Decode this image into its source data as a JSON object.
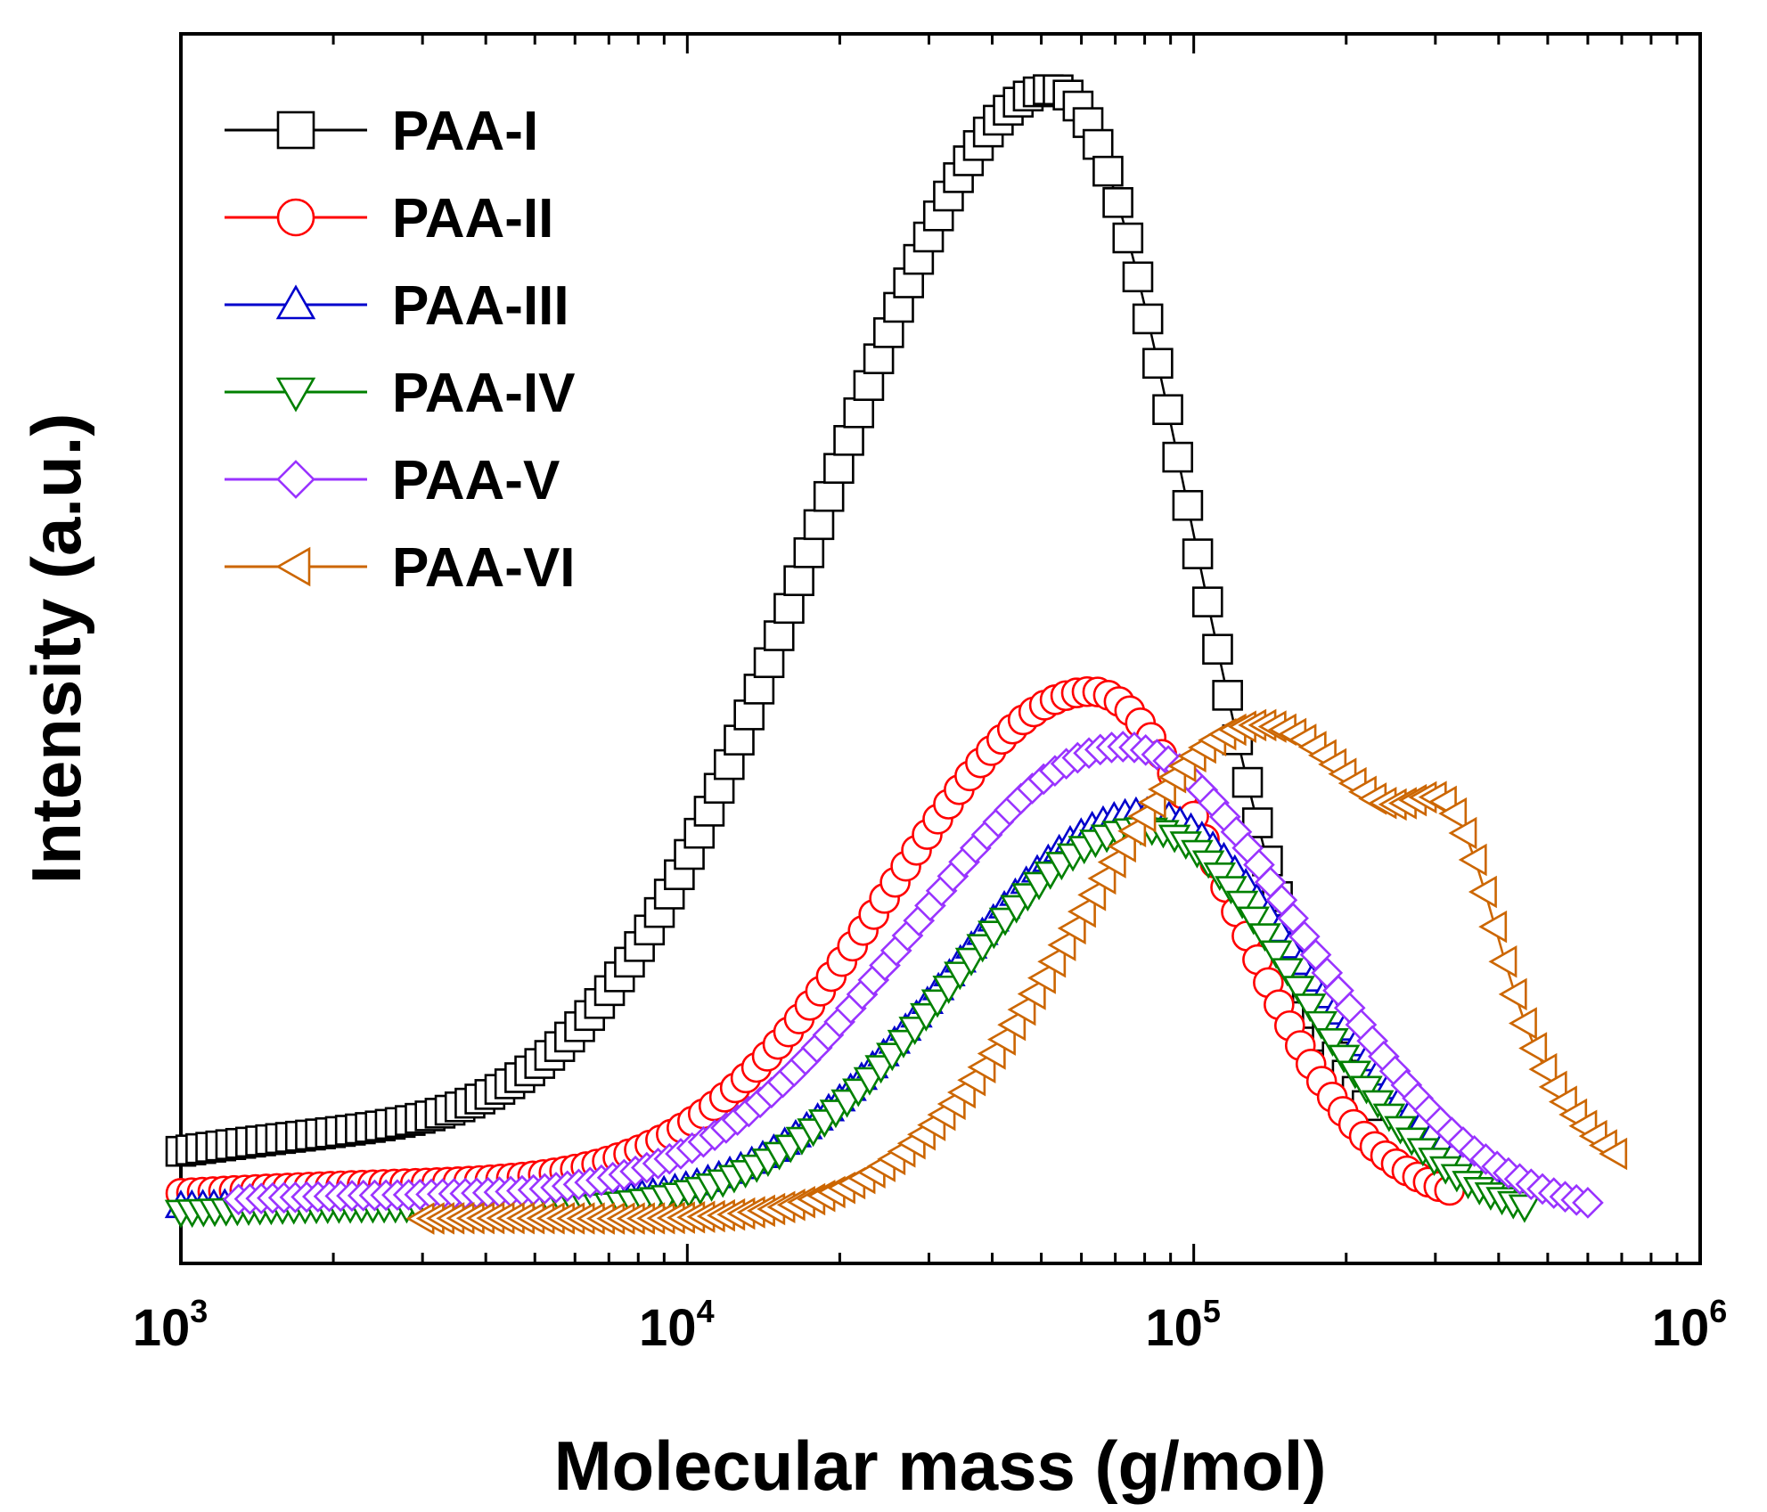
{
  "chart_data": {
    "type": "scatter",
    "title": "",
    "xlabel": "Molecular mass (g/mol)",
    "ylabel": "Intensity (a.u.)",
    "xscale": "log",
    "xlim": [
      1000,
      1000000
    ],
    "ylim": [
      0,
      100
    ],
    "grid": false,
    "legend_position": "top-left",
    "x_ticks": [
      {
        "base": "10",
        "exp": "3"
      },
      {
        "base": "10",
        "exp": "4"
      },
      {
        "base": "10",
        "exp": "5"
      },
      {
        "base": "10",
        "exp": "6"
      }
    ],
    "series": [
      {
        "name": "PAA-I",
        "color": "#000000",
        "marker": "square",
        "x_range": [
          1000,
          220000
        ],
        "points": 120,
        "peak_x": 53000,
        "peak_y": 100,
        "sigma_left": 0.46,
        "sigma_right": 0.27,
        "tail_amp": 4.0,
        "tail_x": 2000,
        "tail_sigma": 0.4,
        "baseline": 5.5
      },
      {
        "name": "PAA-II",
        "color": "#ff0000",
        "marker": "circle",
        "x_range": [
          1000,
          320000
        ],
        "points": 120,
        "peak_x": 63000,
        "peak_y": 47,
        "sigma_left": 0.4,
        "sigma_right": 0.27,
        "tail_amp": 2.0,
        "tail_x": 3000,
        "tail_sigma": 0.5,
        "baseline": 3.5
      },
      {
        "name": "PAA-III",
        "color": "#0000cc",
        "marker": "triangle-up",
        "x_range": [
          1000,
          380000
        ],
        "points": 120,
        "peak_x": 80000,
        "peak_y": 37,
        "sigma_left": 0.38,
        "sigma_right": 0.32,
        "tail_amp": 1.5,
        "tail_x": 2500,
        "tail_sigma": 0.5,
        "baseline": 2.5
      },
      {
        "name": "PAA-IV",
        "color": "#008000",
        "marker": "triangle-down",
        "x_range": [
          1000,
          450000
        ],
        "points": 120,
        "peak_x": 80000,
        "peak_y": 36,
        "sigma_left": 0.38,
        "sigma_right": 0.3,
        "tail_amp": 1.5,
        "tail_x": 2500,
        "tail_sigma": 0.5,
        "baseline": 2.0
      },
      {
        "name": "PAA-V",
        "color": "#9933ff",
        "marker": "diamond",
        "x_range": [
          1300,
          600000
        ],
        "points": 120,
        "peak_x": 73000,
        "peak_y": 43,
        "sigma_left": 0.42,
        "sigma_right": 0.35,
        "tail_amp": 2.0,
        "tail_x": 2500,
        "tail_sigma": 0.5,
        "baseline": 2.5
      },
      {
        "name": "PAA-VI",
        "color": "#cc6600",
        "marker": "triangle-left",
        "x_range": [
          3000,
          680000
        ],
        "points": 120,
        "peak_x": 135000,
        "peak_y": 46,
        "sigma_left": 0.36,
        "sigma_right": 0.36,
        "tail_amp": 1.0,
        "tail_x": 4000,
        "tail_sigma": 0.5,
        "baseline": 1.5,
        "shoulder_amp": 12,
        "shoulder_x": 330000,
        "shoulder_sigma": 0.08
      }
    ]
  }
}
